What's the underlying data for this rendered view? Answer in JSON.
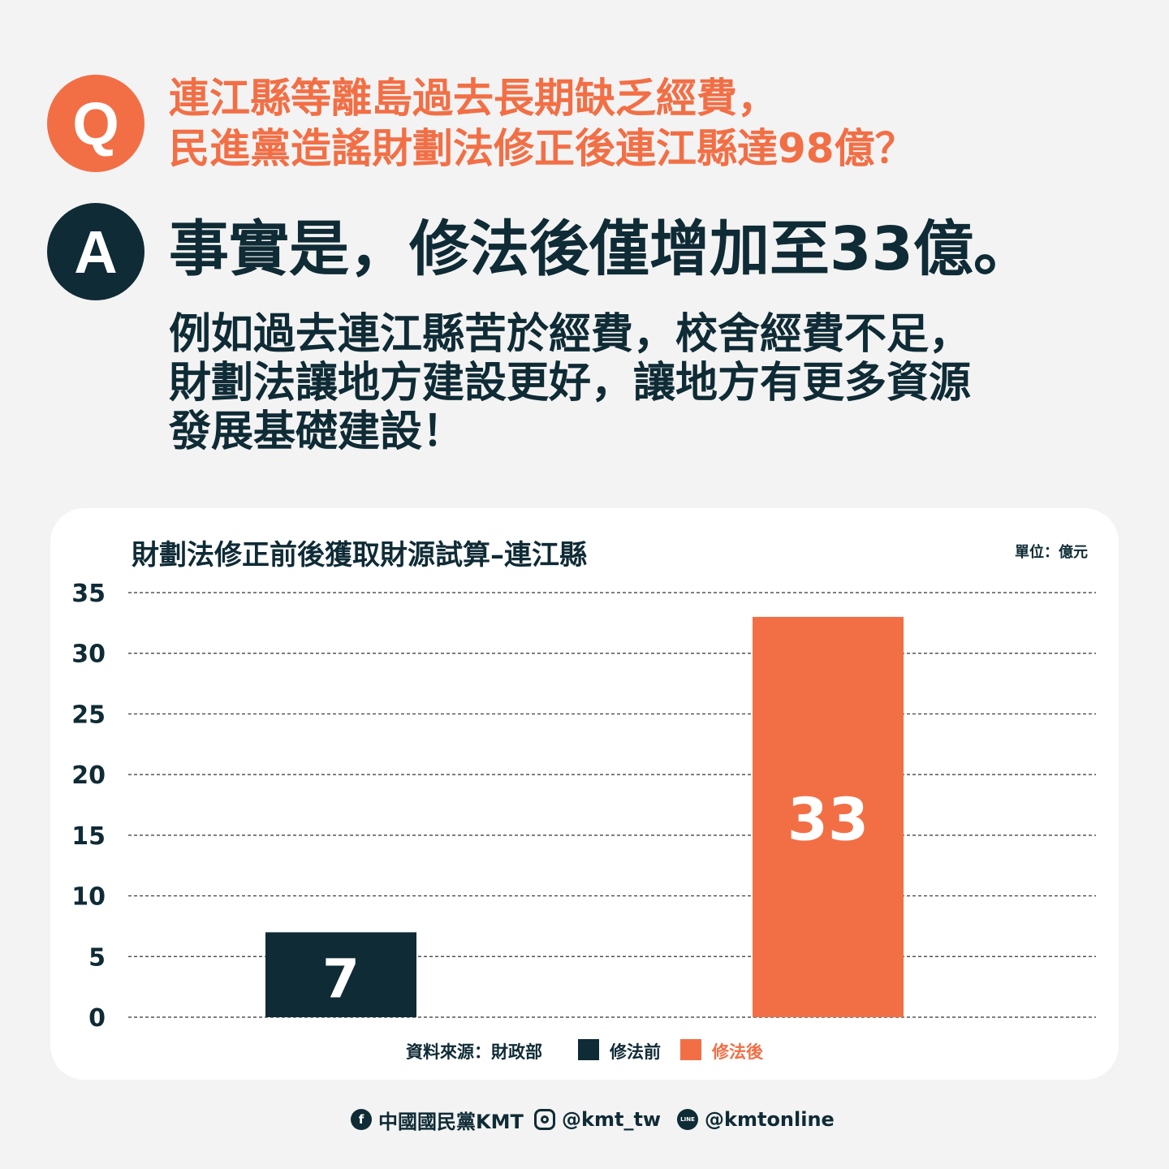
{
  "colors": {
    "accent": "#f26f46",
    "dark": "#0f2b35",
    "background": "#f3f3f3",
    "card": "#ffffff"
  },
  "question": {
    "badge": "Q",
    "lines": [
      "連江縣等離島過去長期缺乏經費，",
      "民進黨造謠財劃法修正後連江縣達98億？"
    ]
  },
  "answer": {
    "badge": "A",
    "headline": "事實是，修法後僅增加至33億。",
    "body_lines": [
      "例如過去連江縣苦於經費，校舍經費不足，",
      "財劃法讓地方建設更好，讓地方有更多資源",
      "發展基礎建設！"
    ]
  },
  "chart_data": {
    "type": "bar",
    "title": "財劃法修正前後獲取財源試算–連江縣",
    "unit": "單位：億元",
    "categories": [
      "修法前",
      "修法後"
    ],
    "values": [
      7,
      33
    ],
    "value_labels": [
      "7",
      "33"
    ],
    "bar_colors": [
      "#0f2b35",
      "#f26f46"
    ],
    "yticks": [
      0,
      5,
      10,
      15,
      20,
      25,
      30,
      35
    ],
    "ylim": [
      0,
      35
    ],
    "grid": "dashed",
    "source": "資料來源：財政部",
    "legend": [
      {
        "label": "修法前",
        "color": "#0f2b35"
      },
      {
        "label": "修法後",
        "color": "#f26f46"
      }
    ]
  },
  "footer": {
    "facebook": {
      "icon": "facebook-icon",
      "text": "中國國民黨KMT"
    },
    "instagram": {
      "icon": "instagram-icon",
      "text": "@kmt_tw"
    },
    "line": {
      "icon": "line-icon",
      "glyph": "LINE",
      "text": "@kmtonline"
    }
  }
}
